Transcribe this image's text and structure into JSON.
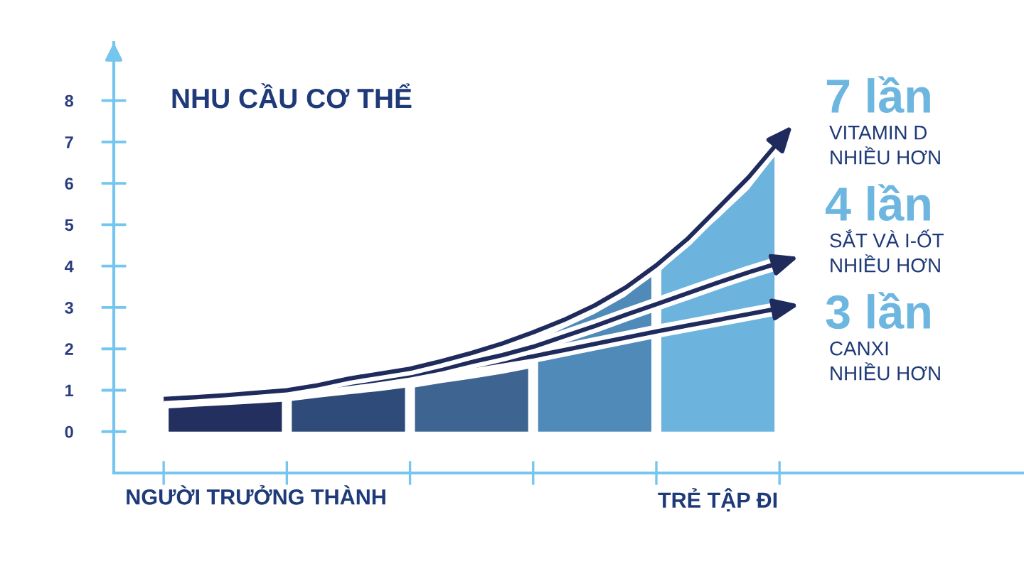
{
  "chart_data": {
    "type": "area",
    "title": "NHU CẦU CƠ THỂ",
    "legend": "right",
    "categories": [
      null,
      null,
      null,
      "NGƯỜI TRƯỞNG THÀNH",
      null,
      null,
      null,
      null,
      null,
      null,
      null,
      null,
      null,
      null,
      null,
      null,
      null,
      null,
      "TRẺ TẬP ĐI",
      null,
      null
    ],
    "ylim": [
      -1,
      9.4
    ],
    "yticks": [
      0,
      1,
      2,
      3,
      4,
      5,
      6,
      7,
      8
    ],
    "annotations": [
      "7 lần",
      "4 lần",
      "3 lần"
    ],
    "series": [
      {
        "color": "#232f5e",
        "values": [
          0.56,
          0.6,
          0.64,
          0.68,
          0.72,
          null,
          null,
          null,
          null,
          null,
          null,
          null,
          null,
          null,
          null,
          null,
          null,
          null,
          null,
          null,
          null
        ]
      },
      {
        "color": "#2e4b79",
        "values": [
          null,
          null,
          null,
          null,
          0.74,
          0.82,
          0.9,
          0.98,
          1.06,
          null,
          null,
          null,
          null,
          null,
          null,
          null,
          null,
          null,
          null,
          null,
          null
        ]
      },
      {
        "color": "#3e6591",
        "values": [
          null,
          null,
          null,
          null,
          null,
          null,
          null,
          null,
          1.07,
          1.17,
          1.28,
          1.4,
          1.52,
          null,
          null,
          null,
          null,
          null,
          null,
          null,
          null
        ]
      },
      {
        "color": "#4f8ab8",
        "values": [
          null,
          null,
          null,
          null,
          null,
          null,
          null,
          null,
          null,
          null,
          null,
          null,
          2.2,
          2.5,
          2.85,
          3.27,
          3.78,
          null,
          null,
          null,
          null
        ]
      },
      {
        "color": "#6cb4dd",
        "values": [
          null,
          null,
          null,
          null,
          null,
          null,
          null,
          null,
          null,
          null,
          null,
          null,
          null,
          null,
          null,
          null,
          3.9,
          4.5,
          5.15,
          5.85,
          6.66
        ]
      },
      {
        "type": "line",
        "name": "VITAMIN D\nNHIỀU HƠN",
        "color": "#1f2b5c",
        "values": [
          0.79,
          0.83,
          0.88,
          0.94,
          1.0,
          1.12,
          1.28,
          1.4,
          1.52,
          1.7,
          1.9,
          2.13,
          2.4,
          2.7,
          3.05,
          3.48,
          4.02,
          4.65,
          5.4,
          6.15,
          7.03
        ]
      },
      {
        "type": "line",
        "name": "SẮT VÀ I-ỐT\nNHIỀU HƠN",
        "color": "#1f2b5c",
        "values": [
          0.77,
          0.82,
          0.87,
          0.92,
          0.97,
          1.06,
          1.15,
          1.25,
          1.36,
          1.5,
          1.68,
          1.85,
          2.05,
          2.3,
          2.55,
          2.82,
          3.08,
          3.34,
          3.6,
          3.85,
          4.08
        ]
      },
      {
        "type": "line",
        "name": "CANXI\nNHIỀU HƠN",
        "color": "#1f2b5c",
        "values": [
          0.74,
          0.79,
          0.83,
          0.88,
          0.93,
          1.0,
          1.08,
          1.16,
          1.26,
          1.42,
          1.58,
          1.7,
          1.82,
          1.97,
          2.12,
          2.27,
          2.42,
          2.56,
          2.7,
          2.84,
          2.98
        ]
      }
    ]
  }
}
